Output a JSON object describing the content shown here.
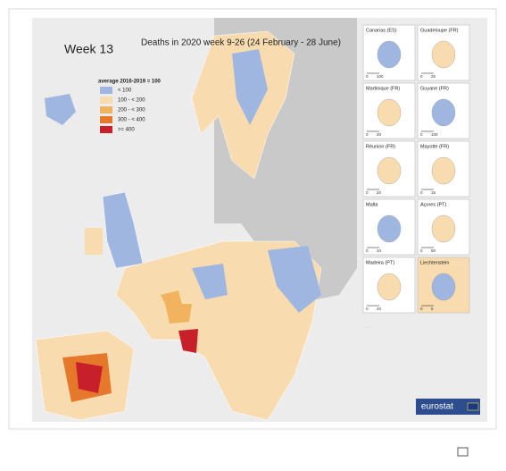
{
  "header": {
    "week": "Week 13",
    "title": "Deaths in 2020 week 9-26 (24 February - 28 June)"
  },
  "legend": {
    "title": "average 2016-2019 = 100",
    "items": [
      {
        "label": "< 100",
        "color": "#9fb6e0"
      },
      {
        "label": "100 - < 200",
        "color": "#f8dcb0"
      },
      {
        "label": "200 - < 300",
        "color": "#f2b35e"
      },
      {
        "label": "300 - < 400",
        "color": "#e6782b"
      },
      {
        "label": ">= 400",
        "color": "#c8202a"
      }
    ]
  },
  "insets": [
    {
      "name": "Canarias (ES)",
      "scale": [
        "0",
        "100"
      ]
    },
    {
      "name": "Guadeloupe (FR)",
      "scale": [
        "0",
        "25"
      ]
    },
    {
      "name": "Martinique (FR)",
      "scale": [
        "0",
        "20"
      ]
    },
    {
      "name": "Guyane (FR)",
      "scale": [
        "0",
        "100"
      ]
    },
    {
      "name": "Réunion (FR)",
      "scale": [
        "0",
        "20"
      ]
    },
    {
      "name": "Mayotte (FR)",
      "scale": [
        "0",
        "15"
      ]
    },
    {
      "name": "Malta",
      "scale": [
        "0",
        "10"
      ]
    },
    {
      "name": "Açores (PT)",
      "scale": [
        "0",
        "50"
      ]
    },
    {
      "name": "Madeira (PT)",
      "scale": [
        "0",
        "20"
      ]
    },
    {
      "name": "Liechtenstein",
      "scale": [
        "0",
        "5"
      ]
    }
  ],
  "logo": "eurostat"
}
